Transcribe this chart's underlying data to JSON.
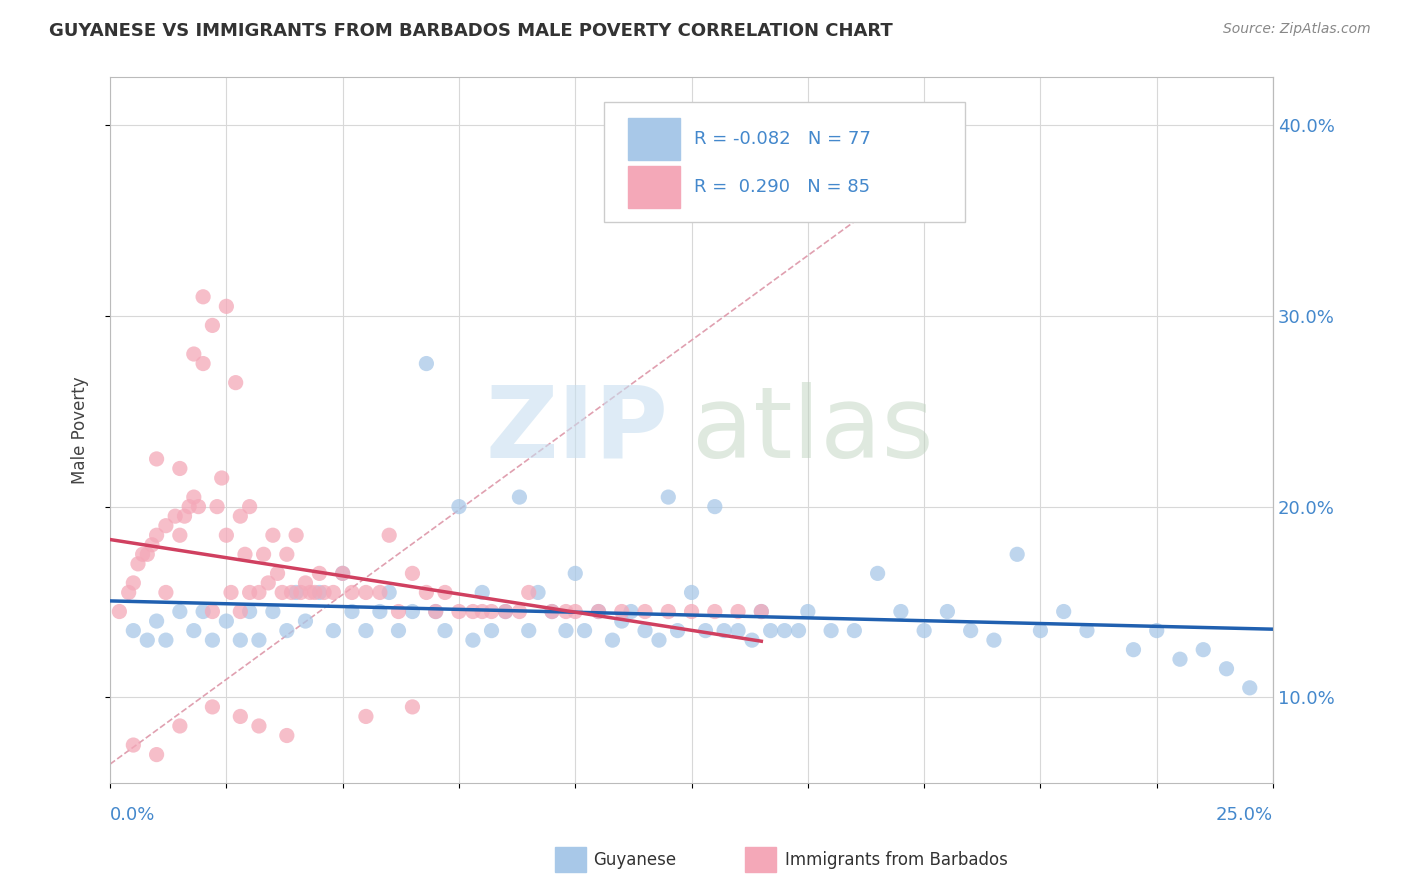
{
  "title": "GUYANESE VS IMMIGRANTS FROM BARBADOS MALE POVERTY CORRELATION CHART",
  "source": "Source: ZipAtlas.com",
  "ylabel": "Male Poverty",
  "blue_color": "#a8c8e8",
  "pink_color": "#f4a8b8",
  "blue_line_color": "#2060b0",
  "pink_line_color": "#d04060",
  "dash_color": "#f0a0b0",
  "xmin": 0.0,
  "xmax": 0.25,
  "ymin": 0.055,
  "ymax": 0.425,
  "ytick_vals": [
    0.1,
    0.2,
    0.3,
    0.4
  ],
  "blue_scatter_x": [
    0.005,
    0.008,
    0.01,
    0.012,
    0.015,
    0.018,
    0.02,
    0.022,
    0.025,
    0.028,
    0.03,
    0.032,
    0.035,
    0.038,
    0.04,
    0.042,
    0.045,
    0.048,
    0.05,
    0.052,
    0.055,
    0.058,
    0.06,
    0.062,
    0.065,
    0.068,
    0.07,
    0.072,
    0.075,
    0.078,
    0.08,
    0.082,
    0.085,
    0.088,
    0.09,
    0.092,
    0.095,
    0.098,
    0.1,
    0.102,
    0.105,
    0.108,
    0.11,
    0.112,
    0.115,
    0.118,
    0.12,
    0.122,
    0.125,
    0.128,
    0.13,
    0.132,
    0.135,
    0.138,
    0.14,
    0.142,
    0.145,
    0.148,
    0.15,
    0.155,
    0.16,
    0.165,
    0.17,
    0.175,
    0.18,
    0.185,
    0.19,
    0.195,
    0.2,
    0.205,
    0.21,
    0.22,
    0.225,
    0.23,
    0.235,
    0.24,
    0.245
  ],
  "blue_scatter_y": [
    0.135,
    0.13,
    0.14,
    0.13,
    0.145,
    0.135,
    0.145,
    0.13,
    0.14,
    0.13,
    0.145,
    0.13,
    0.145,
    0.135,
    0.155,
    0.14,
    0.155,
    0.135,
    0.165,
    0.145,
    0.135,
    0.145,
    0.155,
    0.135,
    0.145,
    0.275,
    0.145,
    0.135,
    0.2,
    0.13,
    0.155,
    0.135,
    0.145,
    0.205,
    0.135,
    0.155,
    0.145,
    0.135,
    0.165,
    0.135,
    0.145,
    0.13,
    0.14,
    0.145,
    0.135,
    0.13,
    0.205,
    0.135,
    0.155,
    0.135,
    0.2,
    0.135,
    0.135,
    0.13,
    0.145,
    0.135,
    0.135,
    0.135,
    0.145,
    0.135,
    0.135,
    0.165,
    0.145,
    0.135,
    0.145,
    0.135,
    0.13,
    0.175,
    0.135,
    0.145,
    0.135,
    0.125,
    0.135,
    0.12,
    0.125,
    0.115,
    0.105
  ],
  "pink_scatter_x": [
    0.002,
    0.004,
    0.005,
    0.006,
    0.007,
    0.008,
    0.009,
    0.01,
    0.01,
    0.012,
    0.012,
    0.014,
    0.015,
    0.015,
    0.016,
    0.017,
    0.018,
    0.018,
    0.019,
    0.02,
    0.02,
    0.022,
    0.022,
    0.023,
    0.024,
    0.025,
    0.025,
    0.026,
    0.027,
    0.028,
    0.028,
    0.029,
    0.03,
    0.03,
    0.032,
    0.033,
    0.034,
    0.035,
    0.036,
    0.037,
    0.038,
    0.039,
    0.04,
    0.041,
    0.042,
    0.043,
    0.044,
    0.045,
    0.046,
    0.048,
    0.05,
    0.052,
    0.055,
    0.058,
    0.06,
    0.062,
    0.065,
    0.068,
    0.07,
    0.072,
    0.075,
    0.078,
    0.08,
    0.082,
    0.085,
    0.088,
    0.09,
    0.095,
    0.098,
    0.1,
    0.105,
    0.11,
    0.115,
    0.12,
    0.125,
    0.13,
    0.135,
    0.14,
    0.015,
    0.022,
    0.028,
    0.032,
    0.038,
    0.005,
    0.01,
    0.055,
    0.065
  ],
  "pink_scatter_y": [
    0.145,
    0.155,
    0.16,
    0.17,
    0.175,
    0.175,
    0.18,
    0.185,
    0.225,
    0.19,
    0.155,
    0.195,
    0.185,
    0.22,
    0.195,
    0.2,
    0.205,
    0.28,
    0.2,
    0.31,
    0.275,
    0.295,
    0.145,
    0.2,
    0.215,
    0.305,
    0.185,
    0.155,
    0.265,
    0.145,
    0.195,
    0.175,
    0.155,
    0.2,
    0.155,
    0.175,
    0.16,
    0.185,
    0.165,
    0.155,
    0.175,
    0.155,
    0.185,
    0.155,
    0.16,
    0.155,
    0.155,
    0.165,
    0.155,
    0.155,
    0.165,
    0.155,
    0.155,
    0.155,
    0.185,
    0.145,
    0.165,
    0.155,
    0.145,
    0.155,
    0.145,
    0.145,
    0.145,
    0.145,
    0.145,
    0.145,
    0.155,
    0.145,
    0.145,
    0.145,
    0.145,
    0.145,
    0.145,
    0.145,
    0.145,
    0.145,
    0.145,
    0.145,
    0.085,
    0.095,
    0.09,
    0.085,
    0.08,
    0.075,
    0.07,
    0.09,
    0.095
  ]
}
